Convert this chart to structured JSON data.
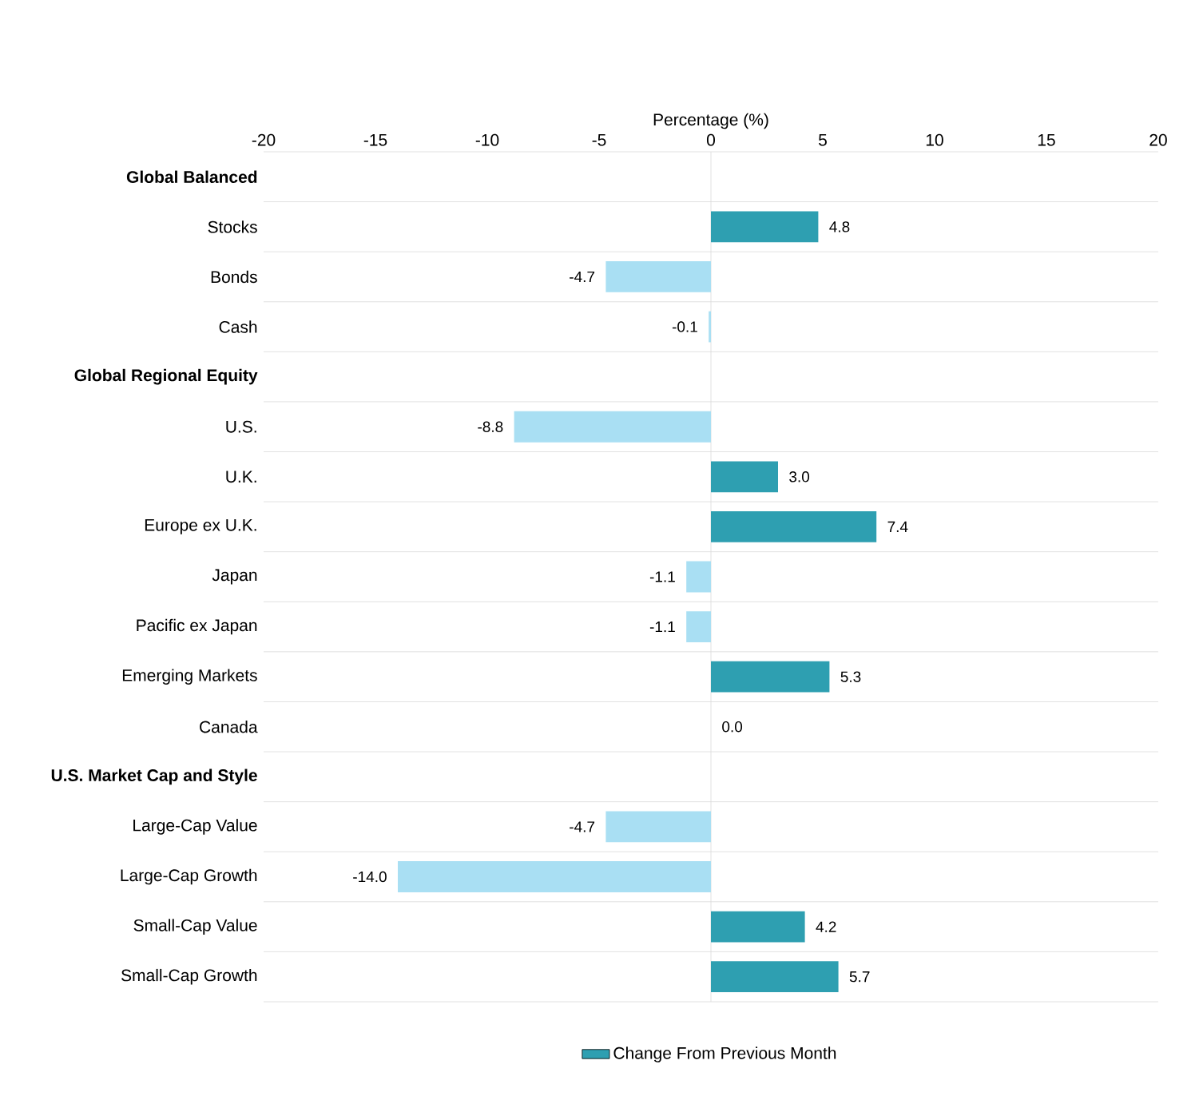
{
  "chart_data": {
    "type": "bar",
    "orientation": "horizontal",
    "xlabel": "Percentage (%)",
    "categories": [
      "Global Balanced",
      "Stocks",
      "Bonds",
      "Cash",
      "Global Regional Equity",
      "U.S.",
      "U.K.",
      "Europe ex U.K.",
      "Japan",
      "Pacific ex Japan",
      "Emerging Markets",
      "Canada",
      "U.S. Market Cap and Style",
      "Large-Cap Value",
      "Large-Cap Growth",
      "Small-Cap Value",
      "Small-Cap Growth"
    ],
    "series": [
      {
        "name": "Change From Previous Month",
        "color": "#2e9fb1",
        "values": [
          null,
          4.8,
          -4.7,
          -0.1,
          null,
          -8.8,
          3.0,
          7.4,
          -1.1,
          -1.1,
          5.3,
          0.0,
          null,
          -4.7,
          -14.0,
          4.2,
          5.7
        ],
        "colors": [
          null,
          "#2e9fb1",
          "#a9dff3",
          "#a9dff3",
          null,
          "#a9dff3",
          "#2e9fb1",
          "#2e9fb1",
          "#a9dff3",
          "#a9dff3",
          "#2e9fb1",
          "#2e9fb1",
          null,
          "#a9dff3",
          "#a9dff3",
          "#2e9fb1",
          "#2e9fb1"
        ],
        "value_labels": [
          null,
          "4.8",
          "-4.7",
          "-0.1",
          null,
          "-8.8",
          "3.0",
          "7.4",
          "-1.1",
          "-1.1",
          "5.3",
          "0.0",
          null,
          "-4.7",
          "-14.0",
          "4.2",
          "5.7"
        ]
      }
    ],
    "xlim": [
      -20,
      20
    ],
    "xticks": [
      -20,
      -15,
      -10,
      -5,
      0,
      5,
      10,
      15,
      20
    ],
    "ref_lines": [
      {
        "axis": "x",
        "value": 0,
        "color": "#d9d9d9"
      }
    ],
    "grid": "y",
    "legend": "bottom"
  }
}
